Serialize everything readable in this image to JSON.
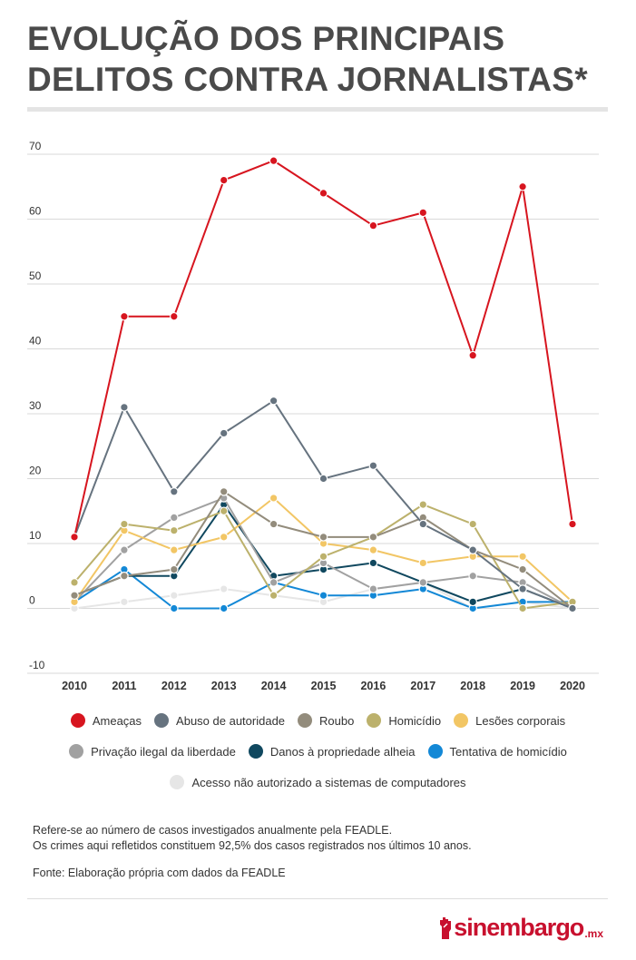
{
  "title": {
    "line1": "EVOLUÇÃO DOS PRINCIPAIS",
    "line2": "DELITOS CONTRA JORNALISTAS*"
  },
  "chart_data": {
    "type": "line",
    "title": "EVOLUÇÃO DOS PRINCIPAIS DELITOS CONTRA JORNALISTAS*",
    "xlabel": "",
    "ylabel": "",
    "x": [
      "2010",
      "2011",
      "2012",
      "2013",
      "2014",
      "2015",
      "2016",
      "2017",
      "2018",
      "2019",
      "2020"
    ],
    "ylim": [
      -10,
      70
    ],
    "yticks": [
      70,
      60,
      50,
      40,
      30,
      20,
      10,
      0,
      -10
    ],
    "grid": true,
    "legend_position": "bottom",
    "series": [
      {
        "name": "Ameaças",
        "color": "#d7151f",
        "values": [
          11,
          45,
          45,
          66,
          69,
          64,
          59,
          61,
          39,
          65,
          13
        ]
      },
      {
        "name": "Abuso de autoridade",
        "color": "#66737f",
        "values": [
          11,
          31,
          18,
          27,
          32,
          20,
          22,
          13,
          9,
          3,
          0
        ]
      },
      {
        "name": "Roubo",
        "color": "#938c7c",
        "values": [
          2,
          5,
          6,
          18,
          13,
          11,
          11,
          14,
          9,
          6,
          0
        ]
      },
      {
        "name": "Homicídio",
        "color": "#bcb16c",
        "values": [
          4,
          13,
          12,
          15,
          2,
          8,
          11,
          16,
          13,
          0,
          1
        ]
      },
      {
        "name": "Lesões corporais",
        "color": "#f2c665",
        "values": [
          1,
          12,
          9,
          11,
          17,
          10,
          9,
          7,
          8,
          8,
          1
        ]
      },
      {
        "name": "Privação ilegal da liberdade",
        "color": "#a1a1a1",
        "values": [
          1,
          9,
          14,
          17,
          4,
          7,
          3,
          4,
          5,
          4,
          0
        ]
      },
      {
        "name": "Danos à propriedade alheia",
        "color": "#10485f",
        "values": [
          2,
          5,
          5,
          16,
          5,
          6,
          7,
          4,
          1,
          3,
          0
        ]
      },
      {
        "name": "Tentativa de homicídio",
        "color": "#1388d6",
        "values": [
          1,
          6,
          0,
          0,
          4,
          2,
          2,
          3,
          0,
          1,
          1
        ]
      },
      {
        "name": "Acesso não autorizado a sistemas de computadores",
        "color": "#e6e6e6",
        "values": [
          0,
          1,
          2,
          3,
          2,
          1,
          3,
          4,
          0,
          1,
          0
        ]
      }
    ]
  },
  "notes": {
    "line1": "Refere-se ao número de casos investigados anualmente pela FEADLE.",
    "line2": "Os crimes aqui refletidos constituem 92,5% dos casos registrados nos últimos 10 anos.",
    "source": "Fonte: Elaboração própria com dados da FEADLE"
  },
  "logo": {
    "name": "sinembargo",
    "suffix": ".mx",
    "color": "#c8102e"
  }
}
